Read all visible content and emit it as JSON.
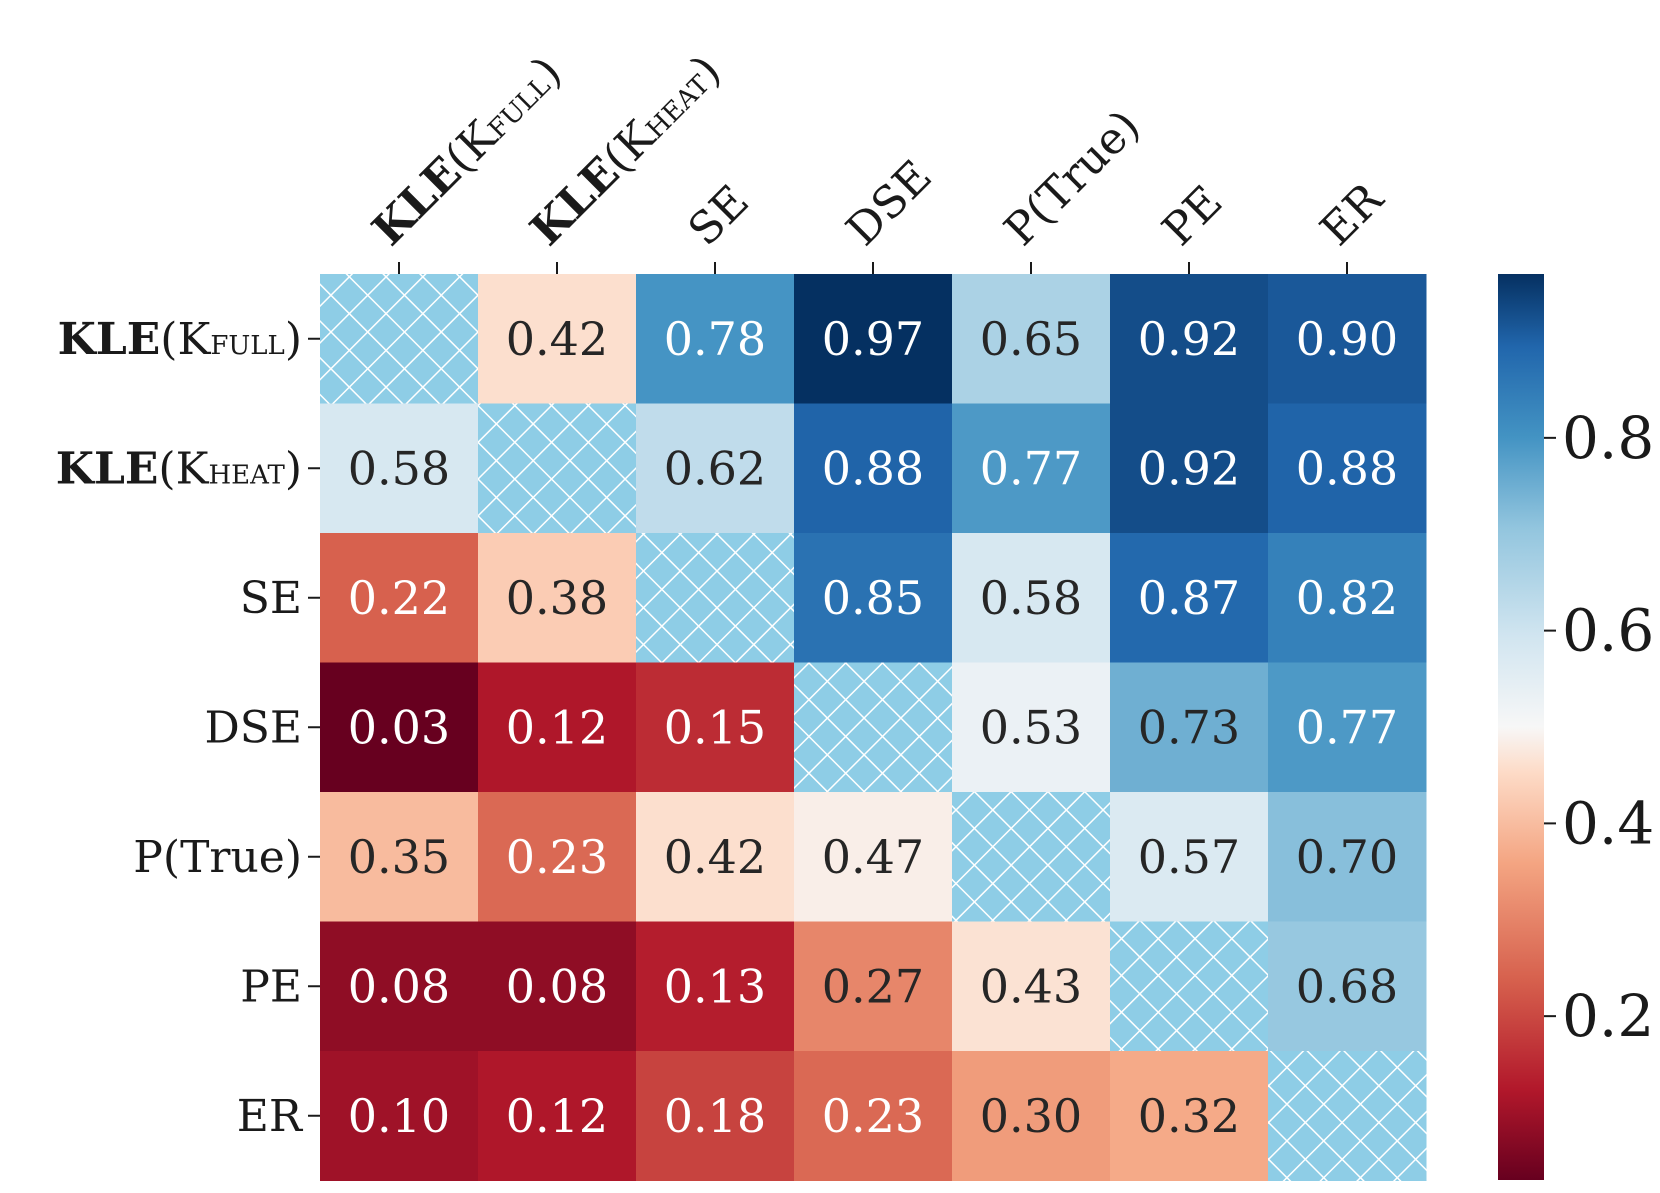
{
  "chart_data": {
    "type": "heatmap",
    "title": "",
    "rows": [
      {
        "prefix": "KLE",
        "label": "(K",
        "sub": "FULL",
        "suffix": ")"
      },
      {
        "prefix": "KLE",
        "label": "(K",
        "sub": "HEAT",
        "suffix": ")"
      },
      {
        "prefix": "",
        "label": "SE",
        "sub": "",
        "suffix": ""
      },
      {
        "prefix": "",
        "label": "DSE",
        "sub": "",
        "suffix": ""
      },
      {
        "prefix": "",
        "label": "P(True)",
        "sub": "",
        "suffix": ""
      },
      {
        "prefix": "",
        "label": "PE",
        "sub": "",
        "suffix": ""
      },
      {
        "prefix": "",
        "label": "ER",
        "sub": "",
        "suffix": ""
      }
    ],
    "columns": [
      {
        "prefix": "KLE",
        "label": "(K",
        "sub": "FULL",
        "suffix": ")"
      },
      {
        "prefix": "KLE",
        "label": "(K",
        "sub": "HEAT",
        "suffix": ")"
      },
      {
        "prefix": "",
        "label": "SE",
        "sub": "",
        "suffix": ""
      },
      {
        "prefix": "",
        "label": "DSE",
        "sub": "",
        "suffix": ""
      },
      {
        "prefix": "",
        "label": "P(True)",
        "sub": "",
        "suffix": ""
      },
      {
        "prefix": "",
        "label": "PE",
        "sub": "",
        "suffix": ""
      },
      {
        "prefix": "",
        "label": "ER",
        "sub": "",
        "suffix": ""
      }
    ],
    "values": [
      [
        null,
        0.42,
        0.78,
        0.97,
        0.65,
        0.92,
        0.9
      ],
      [
        0.58,
        null,
        0.62,
        0.88,
        0.77,
        0.92,
        0.88
      ],
      [
        0.22,
        0.38,
        null,
        0.85,
        0.58,
        0.87,
        0.82
      ],
      [
        0.03,
        0.12,
        0.15,
        null,
        0.53,
        0.73,
        0.77
      ],
      [
        0.35,
        0.23,
        0.42,
        0.47,
        null,
        0.57,
        0.7
      ],
      [
        0.08,
        0.08,
        0.13,
        0.27,
        0.43,
        null,
        0.68
      ],
      [
        0.1,
        0.12,
        0.18,
        0.23,
        0.3,
        0.32,
        null
      ]
    ],
    "value_labels": [
      [
        "",
        "0.42",
        "0.78",
        "0.97",
        "0.65",
        "0.92",
        "0.90"
      ],
      [
        "0.58",
        "",
        "0.62",
        "0.88",
        "0.77",
        "0.92",
        "0.88"
      ],
      [
        "0.22",
        "0.38",
        "",
        "0.85",
        "0.58",
        "0.87",
        "0.82"
      ],
      [
        "0.03",
        "0.12",
        "0.15",
        "",
        "0.53",
        "0.73",
        "0.77"
      ],
      [
        "0.35",
        "0.23",
        "0.42",
        "0.47",
        "",
        "0.57",
        "0.70"
      ],
      [
        "0.08",
        "0.08",
        "0.13",
        "0.27",
        "0.43",
        "",
        "0.68"
      ],
      [
        "0.10",
        "0.12",
        "0.18",
        "0.23",
        "0.30",
        "0.32",
        ""
      ]
    ],
    "diagonal": "hatched",
    "colormap": "RdBu",
    "colorbar": {
      "vmin": 0.03,
      "vmax": 0.97,
      "ticks": [
        0.2,
        0.4,
        0.6,
        0.8
      ],
      "tick_labels": [
        "0.2",
        "0.4",
        "0.6",
        "0.8"
      ]
    }
  },
  "colors": {
    "diagonal_fill": "#8ecde6",
    "hatch_line": "#ffffff",
    "dark_text": "#262626",
    "light_text": "#ffffff"
  }
}
